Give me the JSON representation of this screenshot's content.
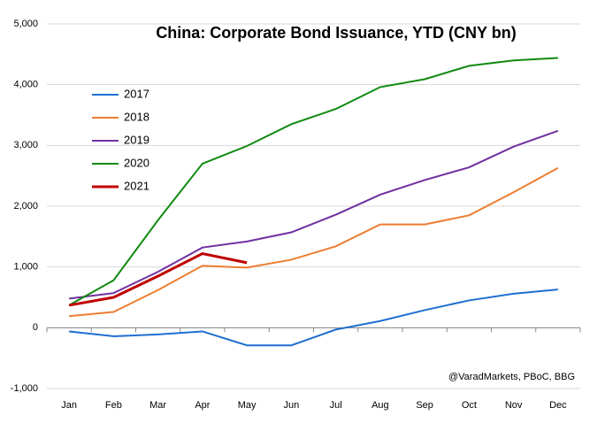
{
  "chart_data": {
    "type": "line",
    "title": "China: Corporate Bond Issuance, YTD (CNY bn)",
    "source": "@VaradMarkets, PBoC,  BBG",
    "categories": [
      "Jan",
      "Feb",
      "Mar",
      "Apr",
      "May",
      "Jun",
      "Jul",
      "Aug",
      "Sep",
      "Oct",
      "Nov",
      "Dec"
    ],
    "series": [
      {
        "name": "2017",
        "color": "#1f6fd1",
        "values": [
          -60,
          -140,
          -110,
          -60,
          -290,
          -290,
          -30,
          110,
          290,
          450,
          560,
          630
        ]
      },
      {
        "name": "2018",
        "color": "#ed7d31",
        "values": [
          190,
          260,
          620,
          1020,
          990,
          1120,
          1340,
          1700,
          1700,
          1850,
          2230,
          2630
        ]
      },
      {
        "name": "2019",
        "color": "#7030a0",
        "values": [
          480,
          570,
          920,
          1320,
          1420,
          1570,
          1860,
          2190,
          2430,
          2640,
          2980,
          3240
        ]
      },
      {
        "name": "2020",
        "color": "#108a10",
        "values": [
          370,
          780,
          1770,
          2700,
          2990,
          3350,
          3600,
          3960,
          4090,
          4310,
          4400,
          4440
        ]
      },
      {
        "name": "2021",
        "color": "#c00000",
        "values": [
          370,
          500,
          850,
          1220,
          1070,
          null,
          null,
          null,
          null,
          null,
          null,
          null
        ]
      }
    ],
    "ylim": [
      -1000,
      5000
    ],
    "yticks": [
      {
        "value": -1000,
        "label": "-1,000"
      },
      0,
      {
        "value": 1000,
        "label": "1,000"
      },
      {
        "value": 2000,
        "label": "2,000"
      },
      {
        "value": 3000,
        "label": "3,000"
      },
      {
        "value": 4000,
        "label": "4,000"
      },
      {
        "value": 5000,
        "label": "5,000"
      }
    ],
    "grid": true
  }
}
